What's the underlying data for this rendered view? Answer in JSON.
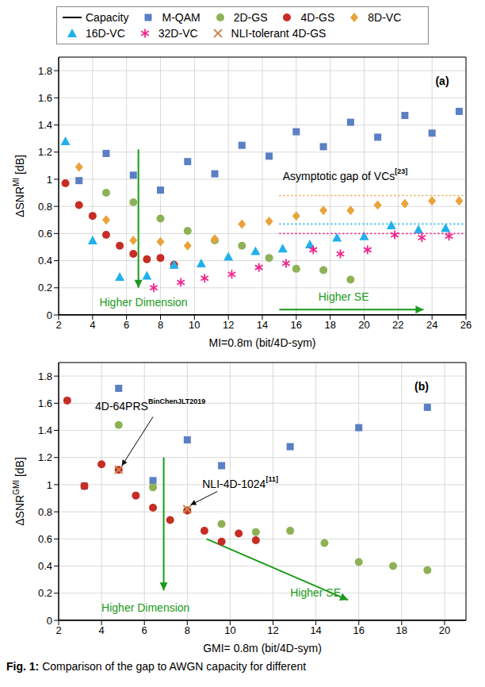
{
  "chart_data": [
    {
      "type": "scatter",
      "x_label": "MI=0.8m (bit/4D-sym)",
      "y_label": {
        "base": "ΔSNR",
        "sup": "MI",
        "suffix": " [dB]"
      },
      "xlim": [
        2,
        26
      ],
      "xticks": [
        2,
        4,
        6,
        8,
        10,
        12,
        14,
        16,
        18,
        20,
        22,
        24,
        26
      ],
      "ylim": [
        0,
        1.9
      ],
      "yticks": [
        0,
        0.2,
        0.4,
        0.6,
        0.8,
        1,
        1.2,
        1.4,
        1.6,
        1.8
      ],
      "grid": true,
      "legend": "top",
      "series": [
        {
          "name": "Capacity",
          "type": "line",
          "line_style": "solid",
          "color": "#000000",
          "x": [
            2,
            26
          ],
          "values": [
            0,
            0
          ]
        },
        {
          "name": "M-QAM",
          "type": "scatter",
          "marker": "square",
          "color": "#5b7fc4",
          "x": [
            3.2,
            4.8,
            6.4,
            8,
            9.6,
            11.2,
            12.8,
            14.4,
            16,
            17.6,
            19.2,
            20.8,
            22.4,
            24,
            25.6
          ],
          "values": [
            0.99,
            1.19,
            1.03,
            0.92,
            1.13,
            1.04,
            1.25,
            1.17,
            1.35,
            1.24,
            1.42,
            1.31,
            1.47,
            1.34,
            1.5
          ]
        },
        {
          "name": "2D-GS",
          "type": "scatter",
          "marker": "circle",
          "color": "#8db255",
          "x": [
            4.8,
            6.4,
            8,
            9.6,
            11.2,
            12.8,
            14.4,
            16,
            17.6,
            19.2
          ],
          "values": [
            0.9,
            0.83,
            0.71,
            0.62,
            0.55,
            0.51,
            0.42,
            0.34,
            0.33,
            0.26
          ]
        },
        {
          "name": "4D-GS",
          "type": "scatter",
          "marker": "circle",
          "color": "#c62d24",
          "x": [
            2.4,
            3.2,
            4,
            4.8,
            5.6,
            6.4,
            7.2,
            8,
            8.8
          ],
          "values": [
            0.97,
            0.81,
            0.73,
            0.59,
            0.51,
            0.45,
            0.41,
            0.42,
            0.37
          ]
        },
        {
          "name": "8D-VC",
          "type": "scatter",
          "marker": "diamond",
          "color": "#e9a33a",
          "x": [
            3.2,
            4.8,
            6.4,
            8,
            9.6,
            11.2,
            12.8,
            14.4,
            16,
            17.6,
            19.2,
            20.8,
            22.4,
            24,
            25.6
          ],
          "values": [
            1.09,
            0.7,
            0.55,
            0.54,
            0.51,
            0.56,
            0.67,
            0.69,
            0.73,
            0.77,
            0.77,
            0.81,
            0.82,
            0.84,
            0.84
          ]
        },
        {
          "name": "16D-VC",
          "type": "scatter",
          "marker": "triangle",
          "color": "#22b0ec",
          "x": [
            2.4,
            4,
            5.6,
            7.2,
            8.8,
            10.4,
            12,
            13.6,
            15.2,
            16.8,
            18.4,
            20,
            21.6,
            23.2,
            24.8
          ],
          "values": [
            1.28,
            0.55,
            0.28,
            0.29,
            0.37,
            0.38,
            0.43,
            0.47,
            0.49,
            0.52,
            0.57,
            0.58,
            0.66,
            0.63,
            0.64
          ]
        },
        {
          "name": "32D-VC",
          "type": "scatter",
          "marker": "star",
          "color": "#f0258c",
          "x": [
            7.6,
            9.2,
            10.6,
            12.2,
            13.8,
            15.4,
            17,
            18.6,
            20.2,
            21.8,
            23.4,
            25
          ],
          "values": [
            0.2,
            0.24,
            0.27,
            0.3,
            0.35,
            0.38,
            0.48,
            0.45,
            0.48,
            0.59,
            0.57,
            0.58
          ]
        },
        {
          "type": "line",
          "line_style": "dotted",
          "color": "#e9a33a",
          "x": [
            15,
            26
          ],
          "values": [
            0.88,
            0.88
          ]
        },
        {
          "type": "line",
          "line_style": "dotted",
          "color": "#22b0ec",
          "x": [
            15,
            26
          ],
          "values": [
            0.67,
            0.67
          ]
        },
        {
          "type": "line",
          "line_style": "dotted",
          "color": "#f0258c",
          "x": [
            15,
            26
          ],
          "values": [
            0.6,
            0.6
          ]
        }
      ],
      "annotations": [
        {
          "text": "(a)",
          "x": 24.2,
          "y": 1.72,
          "color": "#000000"
        },
        {
          "text": "Asymptotic gap of VCs",
          "sup": "[23]",
          "x": 15.2,
          "y": 1.02,
          "color": "#000000"
        },
        {
          "text": "Higher Dimension",
          "x": 4.4,
          "y": 0.09,
          "color": "#1a9a1a",
          "arrow_from": [
            6.7,
            1.22
          ],
          "arrow_to": [
            6.7,
            0.2
          ]
        },
        {
          "text": "Higher SE",
          "x": 17.3,
          "y": 0.13,
          "color": "#1a9a1a",
          "arrow_from": [
            15,
            0.04
          ],
          "arrow_to": [
            23.5,
            0.04
          ]
        }
      ]
    },
    {
      "type": "scatter",
      "x_label": "GMI= 0.8m (bit/4D-sym)",
      "y_label": {
        "base": "ΔSNR",
        "sup": "GMI",
        "suffix": " [dB]"
      },
      "xlim": [
        2,
        21
      ],
      "xticks": [
        2,
        4,
        6,
        8,
        10,
        12,
        14,
        16,
        18,
        20
      ],
      "ylim": [
        0,
        1.9
      ],
      "yticks": [
        0,
        0.2,
        0.4,
        0.6,
        0.8,
        1,
        1.2,
        1.4,
        1.6,
        1.8
      ],
      "grid": true,
      "series": [
        {
          "name": "Capacity",
          "type": "line",
          "line_style": "solid",
          "color": "#000000",
          "x": [
            2,
            21
          ],
          "values": [
            0,
            0
          ]
        },
        {
          "name": "M-QAM",
          "type": "scatter",
          "marker": "square",
          "color": "#5b7fc4",
          "x": [
            3.2,
            4.8,
            6.4,
            8,
            9.6,
            12.8,
            16,
            19.2
          ],
          "values": [
            0.99,
            1.71,
            1.03,
            1.33,
            1.14,
            1.28,
            1.42,
            1.57
          ]
        },
        {
          "name": "2D-GS",
          "type": "scatter",
          "marker": "circle",
          "color": "#8db255",
          "x": [
            4.8,
            6.4,
            8,
            9.6,
            11.2,
            12.8,
            14.4,
            16,
            17.6,
            19.2
          ],
          "values": [
            1.44,
            0.98,
            0.81,
            0.71,
            0.65,
            0.66,
            0.57,
            0.43,
            0.4,
            0.37
          ]
        },
        {
          "name": "4D-GS",
          "type": "scatter",
          "marker": "circle",
          "color": "#c62d24",
          "x": [
            2.4,
            3.2,
            4,
            4.8,
            5.6,
            6.4,
            7.2,
            8,
            8.8,
            9.6,
            10.4,
            11.2
          ],
          "values": [
            1.62,
            0.99,
            1.15,
            1.11,
            0.92,
            0.83,
            0.74,
            0.81,
            0.66,
            0.58,
            0.64,
            0.59
          ]
        },
        {
          "name": "NLI-tolerant 4D-GS",
          "type": "scatter",
          "marker": "x",
          "color": "#c98a55",
          "x": [
            4.8,
            8
          ],
          "values": [
            1.11,
            0.82
          ]
        }
      ],
      "annotations": [
        {
          "text": "(b)",
          "x": 18.6,
          "y": 1.72,
          "color": "#000000"
        },
        {
          "text": "4D-64PRS",
          "sup": "BinChenJLT2019",
          "x": 3.7,
          "y": 1.57,
          "color": "#000000",
          "arrow_from": [
            6.4,
            1.5
          ],
          "arrow_to": [
            4.95,
            1.14
          ]
        },
        {
          "text": "NLI-4D-1024",
          "sup": "[11]",
          "x": 8.7,
          "y": 1.0,
          "color": "#000000",
          "arrow_from": [
            9.4,
            0.95
          ],
          "arrow_to": [
            8.15,
            0.85
          ]
        },
        {
          "text": "Higher Dimension",
          "x": 4.0,
          "y": 0.09,
          "color": "#1a9a1a",
          "arrow_from": [
            6.9,
            1.2
          ],
          "arrow_to": [
            6.9,
            0.22
          ]
        },
        {
          "text": "Higher SE",
          "x": 12.8,
          "y": 0.2,
          "color": "#1a9a1a",
          "arrow_from": [
            8.9,
            0.6
          ],
          "arrow_to": [
            15.5,
            0.15
          ]
        }
      ]
    }
  ],
  "caption": {
    "label": "Fig. 1:",
    "text": "Comparison of the gap to AWGN capacity for different"
  }
}
